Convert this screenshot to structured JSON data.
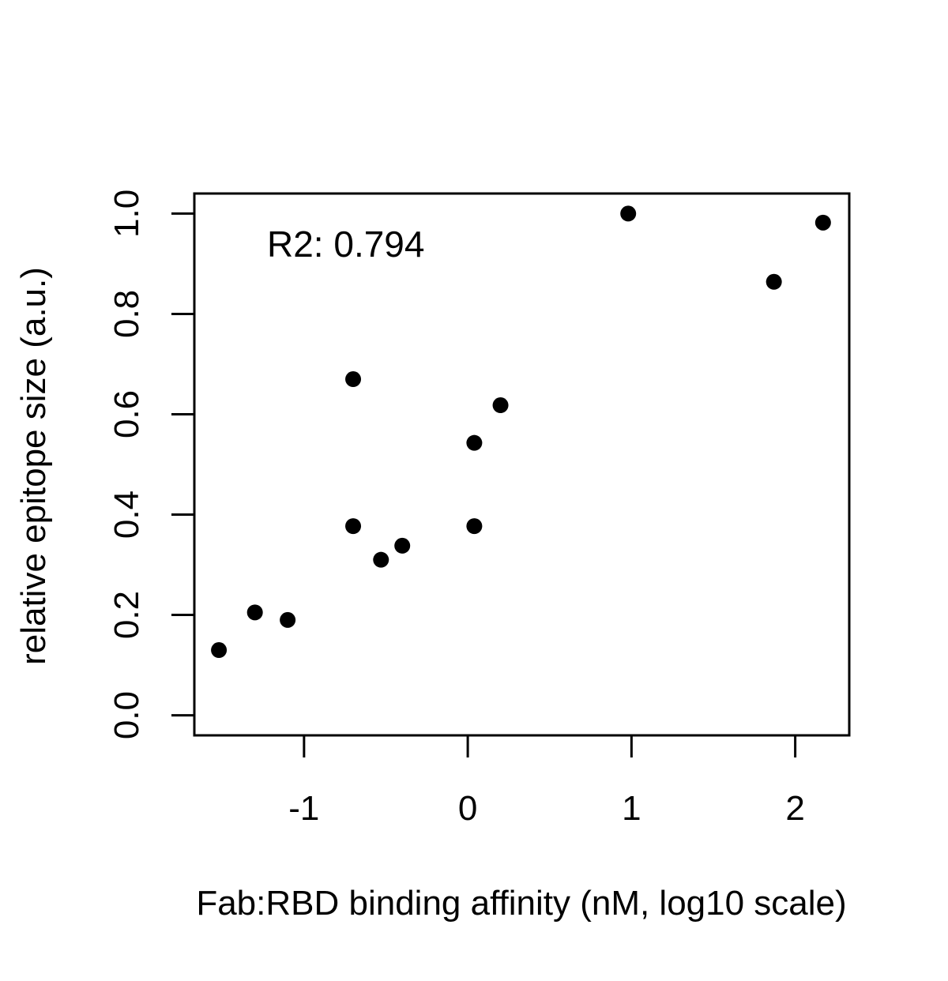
{
  "chart_data": {
    "type": "scatter",
    "title": "",
    "xlabel": "Fab:RBD binding affinity (nM, log10 scale)",
    "ylabel": "relative epitope size (a.u.)",
    "xlim": [
      -1.67,
      2.33
    ],
    "ylim": [
      -0.04,
      1.04
    ],
    "x_ticks": [
      {
        "value": -1,
        "label": "-1"
      },
      {
        "value": 0,
        "label": "0"
      },
      {
        "value": 1,
        "label": "1"
      },
      {
        "value": 2,
        "label": "2"
      }
    ],
    "y_ticks": [
      {
        "value": 0.0,
        "label": "0.0"
      },
      {
        "value": 0.2,
        "label": "0.2"
      },
      {
        "value": 0.4,
        "label": "0.4"
      },
      {
        "value": 0.6,
        "label": "0.6"
      },
      {
        "value": 0.8,
        "label": "0.8"
      },
      {
        "value": 1.0,
        "label": "1.0"
      }
    ],
    "grid": false,
    "legend": "none",
    "annotation": "R2: 0.794",
    "point_color": "#000000",
    "points": [
      {
        "x": -1.52,
        "y": 0.13
      },
      {
        "x": -1.3,
        "y": 0.205
      },
      {
        "x": -1.1,
        "y": 0.19
      },
      {
        "x": -0.7,
        "y": 0.67
      },
      {
        "x": -0.7,
        "y": 0.377
      },
      {
        "x": -0.53,
        "y": 0.31
      },
      {
        "x": -0.4,
        "y": 0.338
      },
      {
        "x": 0.04,
        "y": 0.543
      },
      {
        "x": 0.04,
        "y": 0.377
      },
      {
        "x": 0.2,
        "y": 0.618
      },
      {
        "x": 0.98,
        "y": 1.0
      },
      {
        "x": 1.87,
        "y": 0.864
      },
      {
        "x": 2.17,
        "y": 0.982
      }
    ]
  }
}
